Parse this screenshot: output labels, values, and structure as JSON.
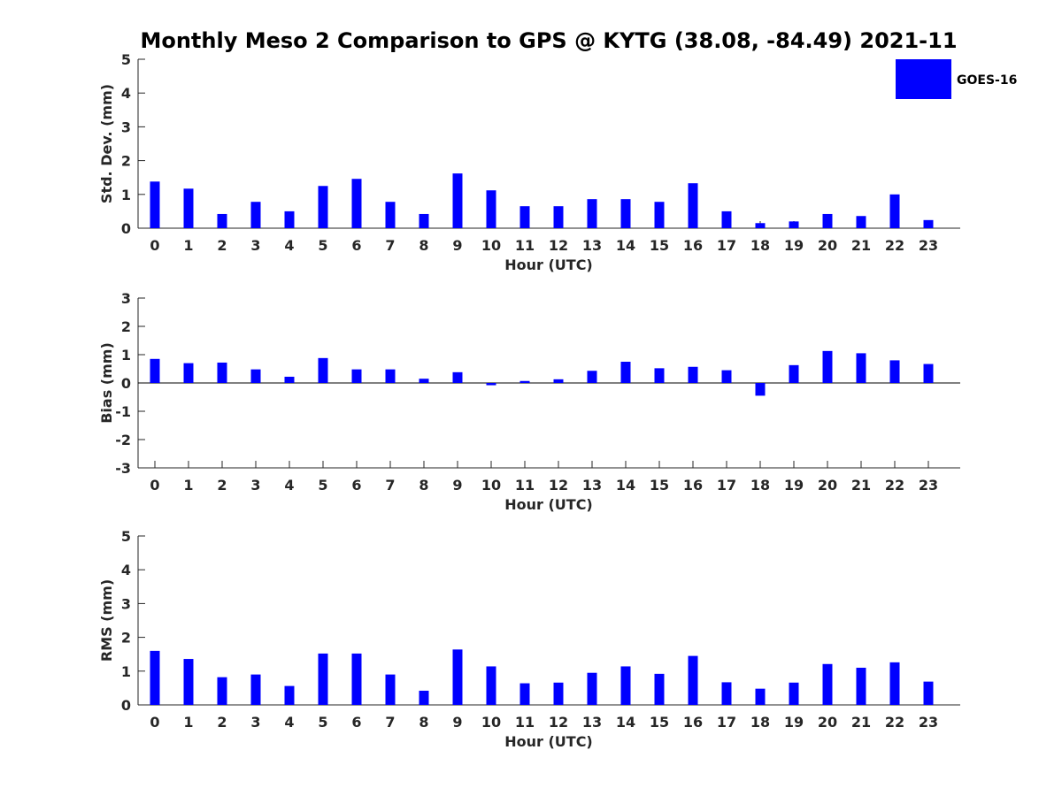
{
  "title": "Monthly Meso 2 Comparison to GPS @ KYTG (38.08, -84.49) 2021-11",
  "legend": {
    "label": "GOES-16",
    "color": "#0000ff"
  },
  "colors": {
    "bar": "#0000ff",
    "axis": "#262626"
  },
  "chart_data": [
    {
      "type": "bar",
      "ylabel": "Std. Dev. (mm)",
      "xlabel": "Hour (UTC)",
      "ylim": [
        0,
        5
      ],
      "yticks": [
        0,
        1,
        2,
        3,
        4,
        5
      ],
      "categories": [
        "0",
        "1",
        "2",
        "3",
        "4",
        "5",
        "6",
        "7",
        "8",
        "9",
        "10",
        "11",
        "12",
        "13",
        "14",
        "15",
        "16",
        "17",
        "18",
        "19",
        "20",
        "21",
        "22",
        "23"
      ],
      "series": [
        {
          "name": "GOES-16",
          "values": [
            1.38,
            1.17,
            0.42,
            0.78,
            0.5,
            1.25,
            1.46,
            0.78,
            0.42,
            1.62,
            1.12,
            0.65,
            0.65,
            0.86,
            0.86,
            0.78,
            1.33,
            0.5,
            0.15,
            0.2,
            0.42,
            0.36,
            1.0,
            0.24
          ]
        }
      ],
      "grid": false
    },
    {
      "type": "bar",
      "ylabel": "Bias (mm)",
      "xlabel": "Hour (UTC)",
      "ylim": [
        -3,
        3
      ],
      "yticks": [
        -3,
        -2,
        -1,
        0,
        1,
        2,
        3
      ],
      "categories": [
        "0",
        "1",
        "2",
        "3",
        "4",
        "5",
        "6",
        "7",
        "8",
        "9",
        "10",
        "11",
        "12",
        "13",
        "14",
        "15",
        "16",
        "17",
        "18",
        "19",
        "20",
        "21",
        "22",
        "23"
      ],
      "series": [
        {
          "name": "GOES-16",
          "values": [
            0.85,
            0.7,
            0.72,
            0.48,
            0.22,
            0.88,
            0.48,
            0.48,
            0.15,
            0.38,
            -0.08,
            0.07,
            0.13,
            0.43,
            0.75,
            0.52,
            0.57,
            0.45,
            -0.45,
            0.63,
            1.13,
            1.05,
            0.8,
            0.67
          ]
        }
      ],
      "grid": false
    },
    {
      "type": "bar",
      "ylabel": "RMS (mm)",
      "xlabel": "Hour (UTC)",
      "ylim": [
        0,
        5
      ],
      "yticks": [
        0,
        1,
        2,
        3,
        4,
        5
      ],
      "categories": [
        "0",
        "1",
        "2",
        "3",
        "4",
        "5",
        "6",
        "7",
        "8",
        "9",
        "10",
        "11",
        "12",
        "13",
        "14",
        "15",
        "16",
        "17",
        "18",
        "19",
        "20",
        "21",
        "22",
        "23"
      ],
      "series": [
        {
          "name": "GOES-16",
          "values": [
            1.6,
            1.36,
            0.82,
            0.9,
            0.56,
            1.52,
            1.52,
            0.9,
            0.42,
            1.64,
            1.14,
            0.64,
            0.66,
            0.95,
            1.14,
            0.92,
            1.45,
            0.67,
            0.48,
            0.66,
            1.21,
            1.1,
            1.26,
            0.69
          ]
        }
      ],
      "grid": false
    }
  ]
}
